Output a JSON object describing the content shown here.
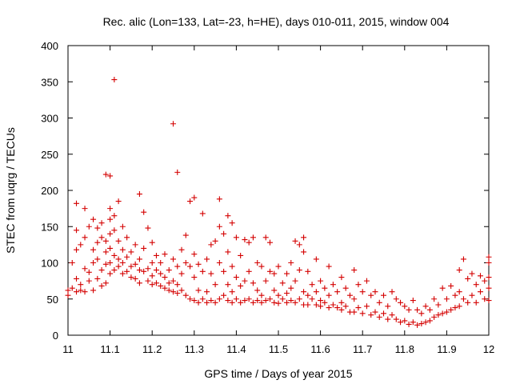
{
  "chart_data": {
    "type": "scatter",
    "title": "Rec. alic (Lon=133, Lat=-23, h=HE), days 010-011, 2015, window 004",
    "xlabel": "GPS time / Days of year 2015",
    "ylabel": "STEC from uqrg / TECUs",
    "xlim": [
      11,
      12
    ],
    "ylim": [
      0,
      400
    ],
    "x_ticks": [
      "11",
      "11.1",
      "11.2",
      "11.3",
      "11.4",
      "11.5",
      "11.6",
      "11.7",
      "11.8",
      "11.9",
      "12"
    ],
    "y_ticks": [
      "0",
      "50",
      "100",
      "150",
      "200",
      "250",
      "300",
      "350",
      "400"
    ],
    "grid": false,
    "marker": "plus",
    "marker_color": "#d40000",
    "points": [
      [
        11.0,
        55
      ],
      [
        11.0,
        62
      ],
      [
        11.01,
        100
      ],
      [
        11.01,
        65
      ],
      [
        11.02,
        118
      ],
      [
        11.02,
        78
      ],
      [
        11.02,
        60
      ],
      [
        11.02,
        145
      ],
      [
        11.02,
        182
      ],
      [
        11.03,
        70
      ],
      [
        11.03,
        125
      ],
      [
        11.03,
        62
      ],
      [
        11.04,
        175
      ],
      [
        11.04,
        135
      ],
      [
        11.04,
        92
      ],
      [
        11.04,
        60
      ],
      [
        11.05,
        150
      ],
      [
        11.05,
        75
      ],
      [
        11.05,
        87
      ],
      [
        11.06,
        160
      ],
      [
        11.06,
        118
      ],
      [
        11.06,
        100
      ],
      [
        11.06,
        62
      ],
      [
        11.07,
        148
      ],
      [
        11.07,
        128
      ],
      [
        11.07,
        105
      ],
      [
        11.07,
        78
      ],
      [
        11.08,
        155
      ],
      [
        11.08,
        90
      ],
      [
        11.08,
        68
      ],
      [
        11.08,
        135
      ],
      [
        11.09,
        222
      ],
      [
        11.09,
        130
      ],
      [
        11.09,
        115
      ],
      [
        11.09,
        98
      ],
      [
        11.09,
        72
      ],
      [
        11.1,
        220
      ],
      [
        11.1,
        175
      ],
      [
        11.1,
        160
      ],
      [
        11.1,
        140
      ],
      [
        11.1,
        120
      ],
      [
        11.1,
        100
      ],
      [
        11.1,
        85
      ],
      [
        11.11,
        353
      ],
      [
        11.11,
        165
      ],
      [
        11.11,
        145
      ],
      [
        11.11,
        110
      ],
      [
        11.11,
        90
      ],
      [
        11.12,
        185
      ],
      [
        11.12,
        130
      ],
      [
        11.12,
        105
      ],
      [
        11.12,
        95
      ],
      [
        11.13,
        150
      ],
      [
        11.13,
        118
      ],
      [
        11.13,
        100
      ],
      [
        11.13,
        85
      ],
      [
        11.14,
        135
      ],
      [
        11.14,
        108
      ],
      [
        11.14,
        88
      ],
      [
        11.15,
        115
      ],
      [
        11.15,
        95
      ],
      [
        11.15,
        80
      ],
      [
        11.16,
        125
      ],
      [
        11.16,
        98
      ],
      [
        11.16,
        78
      ],
      [
        11.17,
        195
      ],
      [
        11.17,
        105
      ],
      [
        11.17,
        90
      ],
      [
        11.17,
        72
      ],
      [
        11.18,
        170
      ],
      [
        11.18,
        120
      ],
      [
        11.18,
        88
      ],
      [
        11.19,
        148
      ],
      [
        11.19,
        92
      ],
      [
        11.19,
        75
      ],
      [
        11.2,
        128
      ],
      [
        11.2,
        100
      ],
      [
        11.2,
        82
      ],
      [
        11.2,
        70
      ],
      [
        11.21,
        110
      ],
      [
        11.21,
        90
      ],
      [
        11.21,
        72
      ],
      [
        11.22,
        100
      ],
      [
        11.22,
        85
      ],
      [
        11.22,
        68
      ],
      [
        11.23,
        112
      ],
      [
        11.23,
        80
      ],
      [
        11.23,
        65
      ],
      [
        11.24,
        90
      ],
      [
        11.24,
        72
      ],
      [
        11.24,
        62
      ],
      [
        11.25,
        292
      ],
      [
        11.25,
        105
      ],
      [
        11.25,
        75
      ],
      [
        11.25,
        60
      ],
      [
        11.26,
        225
      ],
      [
        11.26,
        95
      ],
      [
        11.26,
        70
      ],
      [
        11.26,
        58
      ],
      [
        11.27,
        118
      ],
      [
        11.27,
        85
      ],
      [
        11.27,
        62
      ],
      [
        11.28,
        138
      ],
      [
        11.28,
        100
      ],
      [
        11.28,
        55
      ],
      [
        11.29,
        185
      ],
      [
        11.29,
        95
      ],
      [
        11.29,
        50
      ],
      [
        11.3,
        190
      ],
      [
        11.3,
        112
      ],
      [
        11.3,
        80
      ],
      [
        11.3,
        48
      ],
      [
        11.31,
        98
      ],
      [
        11.31,
        62
      ],
      [
        11.31,
        45
      ],
      [
        11.32,
        168
      ],
      [
        11.32,
        88
      ],
      [
        11.32,
        50
      ],
      [
        11.33,
        105
      ],
      [
        11.33,
        60
      ],
      [
        11.33,
        45
      ],
      [
        11.34,
        125
      ],
      [
        11.34,
        85
      ],
      [
        11.34,
        48
      ],
      [
        11.35,
        130
      ],
      [
        11.35,
        70
      ],
      [
        11.35,
        45
      ],
      [
        11.36,
        188
      ],
      [
        11.36,
        150
      ],
      [
        11.36,
        100
      ],
      [
        11.36,
        50
      ],
      [
        11.37,
        140
      ],
      [
        11.37,
        88
      ],
      [
        11.37,
        55
      ],
      [
        11.38,
        165
      ],
      [
        11.38,
        115
      ],
      [
        11.38,
        70
      ],
      [
        11.38,
        48
      ],
      [
        11.39,
        155
      ],
      [
        11.39,
        95
      ],
      [
        11.39,
        60
      ],
      [
        11.39,
        45
      ],
      [
        11.4,
        135
      ],
      [
        11.4,
        80
      ],
      [
        11.4,
        50
      ],
      [
        11.41,
        110
      ],
      [
        11.41,
        68
      ],
      [
        11.41,
        45
      ],
      [
        11.42,
        132
      ],
      [
        11.42,
        75
      ],
      [
        11.42,
        48
      ],
      [
        11.43,
        128
      ],
      [
        11.43,
        88
      ],
      [
        11.43,
        50
      ],
      [
        11.44,
        135
      ],
      [
        11.44,
        72
      ],
      [
        11.44,
        45
      ],
      [
        11.45,
        100
      ],
      [
        11.45,
        62
      ],
      [
        11.45,
        48
      ],
      [
        11.46,
        95
      ],
      [
        11.46,
        55
      ],
      [
        11.46,
        45
      ],
      [
        11.47,
        135
      ],
      [
        11.47,
        75
      ],
      [
        11.47,
        48
      ],
      [
        11.48,
        128
      ],
      [
        11.48,
        88
      ],
      [
        11.48,
        50
      ],
      [
        11.49,
        85
      ],
      [
        11.49,
        62
      ],
      [
        11.49,
        45
      ],
      [
        11.5,
        95
      ],
      [
        11.5,
        55
      ],
      [
        11.5,
        44
      ],
      [
        11.51,
        72
      ],
      [
        11.51,
        50
      ],
      [
        11.52,
        85
      ],
      [
        11.52,
        58
      ],
      [
        11.52,
        45
      ],
      [
        11.53,
        100
      ],
      [
        11.53,
        65
      ],
      [
        11.53,
        48
      ],
      [
        11.54,
        130
      ],
      [
        11.54,
        75
      ],
      [
        11.54,
        45
      ],
      [
        11.55,
        125
      ],
      [
        11.55,
        90
      ],
      [
        11.55,
        50
      ],
      [
        11.56,
        135
      ],
      [
        11.56,
        115
      ],
      [
        11.56,
        60
      ],
      [
        11.56,
        42
      ],
      [
        11.57,
        88
      ],
      [
        11.57,
        55
      ],
      [
        11.57,
        42
      ],
      [
        11.58,
        70
      ],
      [
        11.58,
        50
      ],
      [
        11.59,
        105
      ],
      [
        11.59,
        60
      ],
      [
        11.59,
        42
      ],
      [
        11.6,
        75
      ],
      [
        11.6,
        48
      ],
      [
        11.6,
        40
      ],
      [
        11.61,
        65
      ],
      [
        11.61,
        45
      ],
      [
        11.62,
        95
      ],
      [
        11.62,
        55
      ],
      [
        11.62,
        38
      ],
      [
        11.63,
        70
      ],
      [
        11.63,
        42
      ],
      [
        11.64,
        60
      ],
      [
        11.64,
        38
      ],
      [
        11.65,
        80
      ],
      [
        11.65,
        45
      ],
      [
        11.65,
        35
      ],
      [
        11.66,
        65
      ],
      [
        11.66,
        40
      ],
      [
        11.67,
        55
      ],
      [
        11.67,
        32
      ],
      [
        11.68,
        90
      ],
      [
        11.68,
        50
      ],
      [
        11.68,
        32
      ],
      [
        11.69,
        70
      ],
      [
        11.69,
        38
      ],
      [
        11.7,
        60
      ],
      [
        11.7,
        30
      ],
      [
        11.71,
        75
      ],
      [
        11.71,
        40
      ],
      [
        11.72,
        55
      ],
      [
        11.72,
        28
      ],
      [
        11.73,
        60
      ],
      [
        11.73,
        32
      ],
      [
        11.74,
        45
      ],
      [
        11.74,
        25
      ],
      [
        11.75,
        55
      ],
      [
        11.75,
        30
      ],
      [
        11.76,
        40
      ],
      [
        11.76,
        22
      ],
      [
        11.77,
        60
      ],
      [
        11.77,
        28
      ],
      [
        11.78,
        50
      ],
      [
        11.78,
        22
      ],
      [
        11.79,
        45
      ],
      [
        11.79,
        18
      ],
      [
        11.8,
        40
      ],
      [
        11.8,
        20
      ],
      [
        11.81,
        35
      ],
      [
        11.81,
        15
      ],
      [
        11.82,
        48
      ],
      [
        11.82,
        18
      ],
      [
        11.83,
        35
      ],
      [
        11.83,
        14
      ],
      [
        11.84,
        30
      ],
      [
        11.84,
        16
      ],
      [
        11.85,
        40
      ],
      [
        11.85,
        18
      ],
      [
        11.86,
        35
      ],
      [
        11.86,
        20
      ],
      [
        11.87,
        50
      ],
      [
        11.87,
        25
      ],
      [
        11.88,
        42
      ],
      [
        11.88,
        28
      ],
      [
        11.89,
        65
      ],
      [
        11.89,
        30
      ],
      [
        11.9,
        50
      ],
      [
        11.9,
        32
      ],
      [
        11.91,
        68
      ],
      [
        11.91,
        35
      ],
      [
        11.92,
        55
      ],
      [
        11.92,
        38
      ],
      [
        11.93,
        90
      ],
      [
        11.93,
        60
      ],
      [
        11.93,
        40
      ],
      [
        11.94,
        105
      ],
      [
        11.94,
        50
      ],
      [
        11.95,
        78
      ],
      [
        11.95,
        45
      ],
      [
        11.96,
        85
      ],
      [
        11.96,
        55
      ],
      [
        11.97,
        70
      ],
      [
        11.97,
        45
      ],
      [
        11.98,
        82
      ],
      [
        11.98,
        60
      ],
      [
        11.99,
        75
      ],
      [
        11.99,
        50
      ],
      [
        12.0,
        108
      ],
      [
        12.0,
        100
      ],
      [
        12.0,
        80
      ],
      [
        12.0,
        65
      ],
      [
        12.0,
        48
      ]
    ]
  }
}
